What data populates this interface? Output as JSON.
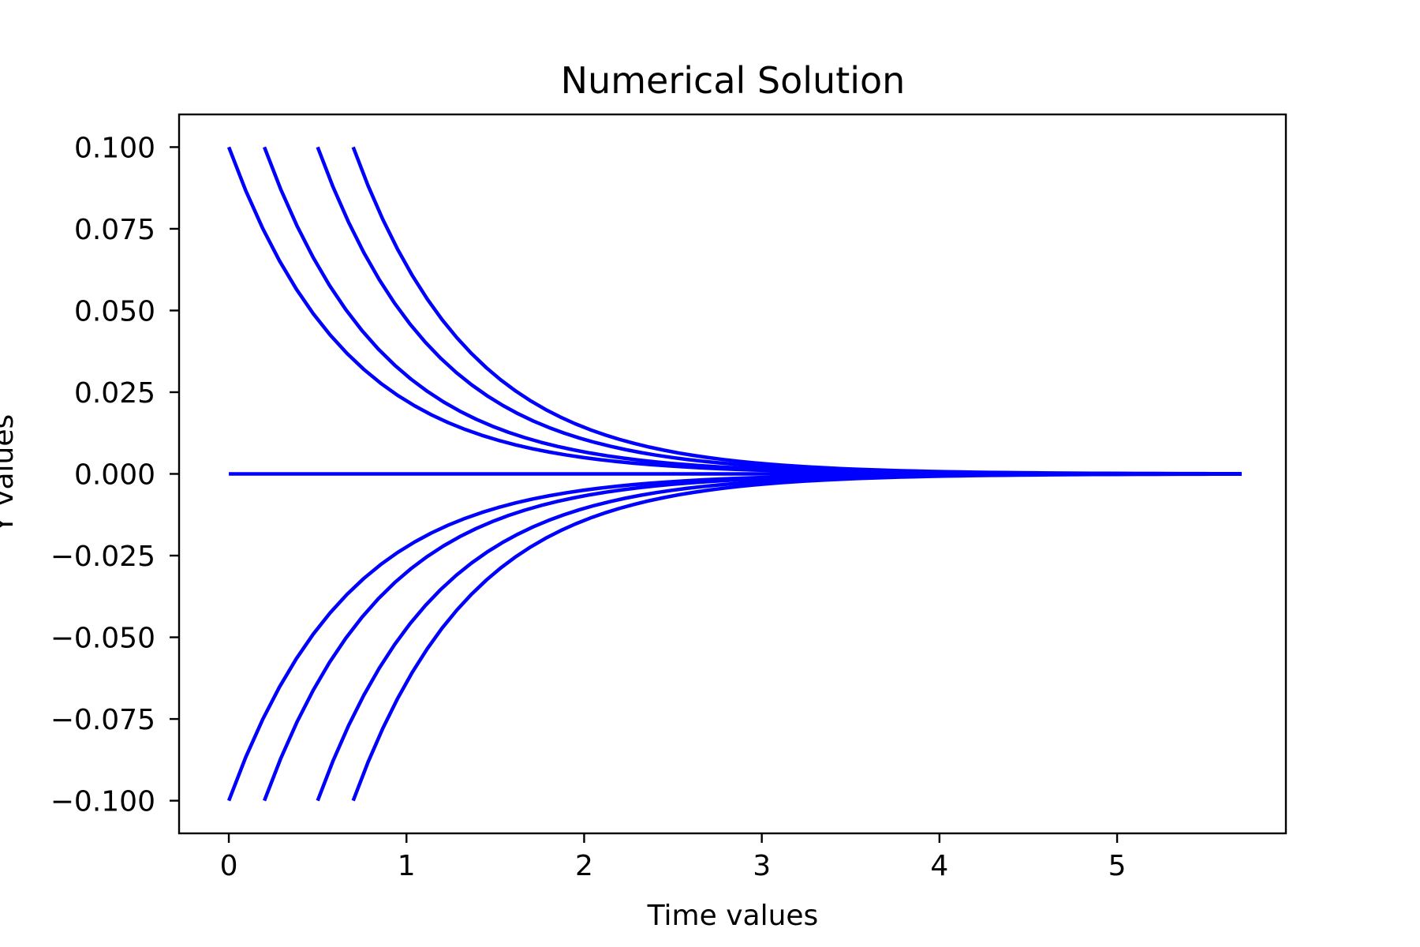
{
  "chart_data": {
    "type": "line",
    "title": "Numerical Solution",
    "xlabel": "Time values",
    "ylabel": "Y values",
    "xlim": [
      -0.28,
      5.95
    ],
    "ylim": [
      -0.11,
      0.11
    ],
    "x_ticks": [
      0,
      1,
      2,
      3,
      4,
      5
    ],
    "y_ticks": [
      0.1,
      0.075,
      0.05,
      0.025,
      0.0,
      -0.025,
      -0.05,
      -0.075,
      -0.1
    ],
    "x_tick_labels": [
      "0",
      "1",
      "2",
      "3",
      "4",
      "5"
    ],
    "y_tick_labels": [
      "0.100",
      "0.075",
      "0.050",
      "0.025",
      "0.000",
      "−0.025",
      "−0.050",
      "−0.075",
      "−0.100"
    ],
    "grid": false,
    "legend": "none",
    "line_color": "#0000ff",
    "model": "y = y0 * exp(-1.5 * (t - t0))",
    "series": [
      {
        "t0": 0.0,
        "y0": 0.1,
        "t_end": 5.7
      },
      {
        "t0": 0.2,
        "y0": 0.1,
        "t_end": 5.7
      },
      {
        "t0": 0.5,
        "y0": 0.1,
        "t_end": 5.7
      },
      {
        "t0": 0.7,
        "y0": 0.1,
        "t_end": 5.7
      },
      {
        "t0": 0.0,
        "y0": 0.0,
        "t_end": 5.7
      },
      {
        "t0": 0.0,
        "y0": -0.1,
        "t_end": 5.7
      },
      {
        "t0": 0.2,
        "y0": -0.1,
        "t_end": 5.7
      },
      {
        "t0": 0.5,
        "y0": -0.1,
        "t_end": 5.7
      },
      {
        "t0": 0.7,
        "y0": -0.1,
        "t_end": 5.7
      }
    ]
  }
}
